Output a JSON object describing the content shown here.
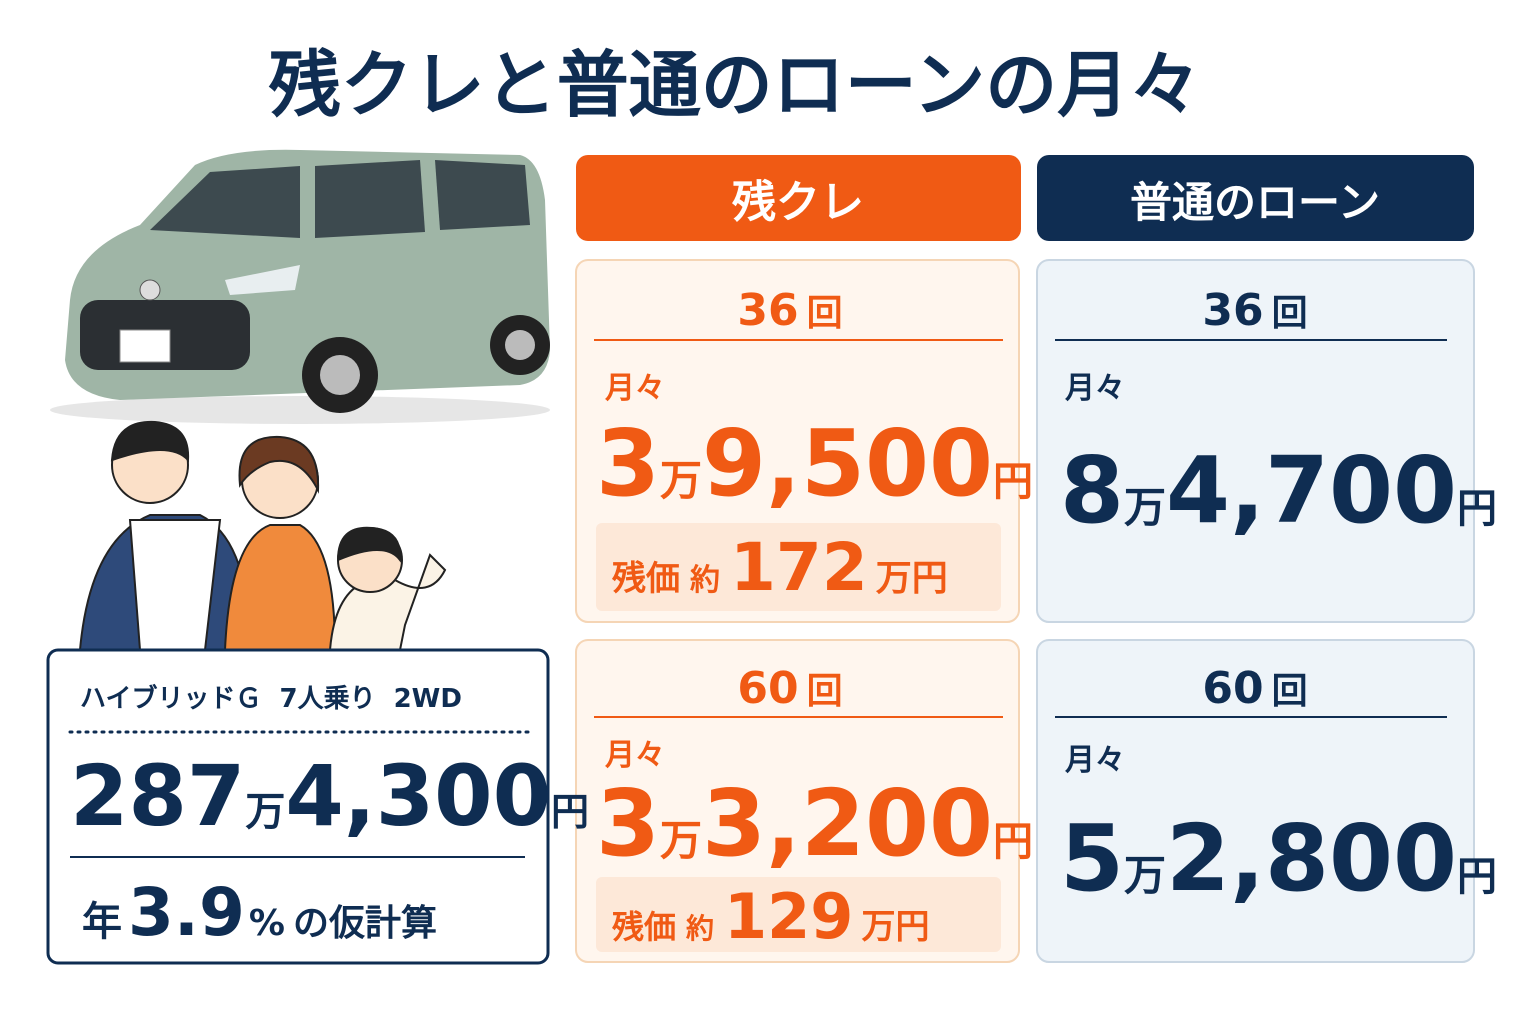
{
  "title": "残クレと普通のローンの月々",
  "columns": [
    {
      "header": "残クレ",
      "plans": [
        {
          "term": "36",
          "term_unit": "回",
          "monthly_label": "月々",
          "amount": [
            "3",
            "万",
            "9,500",
            "円"
          ],
          "residual": {
            "label": "残価",
            "approx": "約",
            "amount": "172",
            "unit": "万円"
          }
        },
        {
          "term": "60",
          "term_unit": "回",
          "monthly_label": "月々",
          "amount": [
            "3",
            "万",
            "3,200",
            "円"
          ],
          "residual": {
            "label": "残価",
            "approx": "約",
            "amount": "129",
            "unit": "万円"
          }
        }
      ]
    },
    {
      "header": "普通のローン",
      "plans": [
        {
          "term": "36",
          "term_unit": "回",
          "monthly_label": "月々",
          "amount": [
            "8",
            "万",
            "4,700",
            "円"
          ]
        },
        {
          "term": "60",
          "term_unit": "回",
          "monthly_label": "月々",
          "amount": [
            "5",
            "万",
            "2,800",
            "円"
          ]
        }
      ]
    }
  ],
  "vehicle": {
    "grade": "ハイブリッドＧ",
    "seats": "7人乗り",
    "drive": "2WD",
    "price": [
      "287",
      "万",
      "4,300",
      "円"
    ],
    "rate": {
      "prefix": "年",
      "value": "3.9",
      "unit": "%",
      "suffix": "の仮計算"
    }
  }
}
